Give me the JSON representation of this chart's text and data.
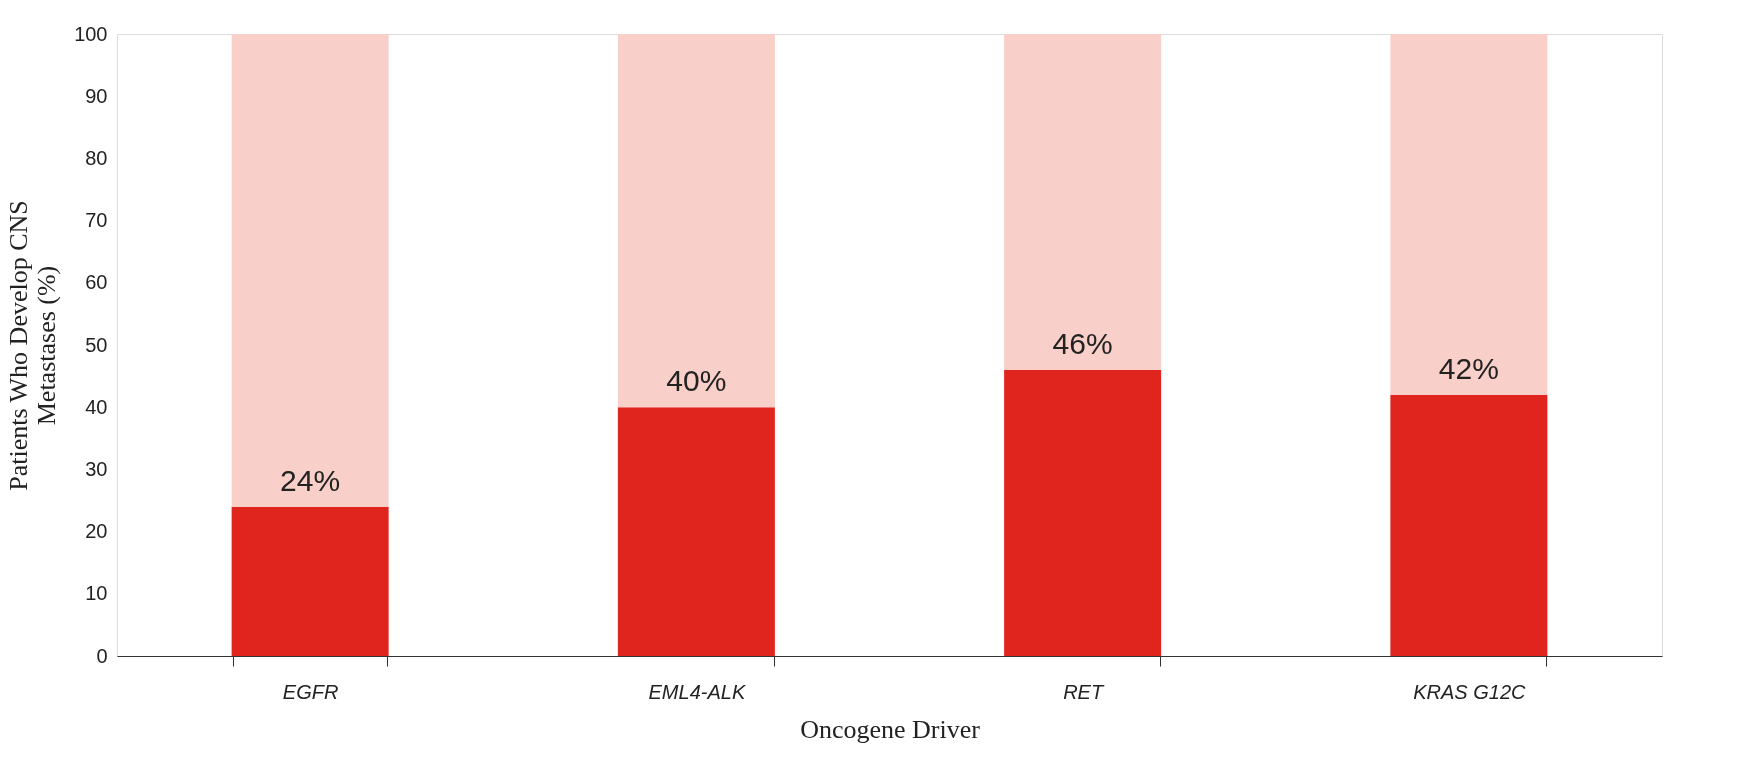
{
  "chart_data": {
    "type": "bar",
    "xlabel": "Oncogene Driver",
    "ylabel": "Patients Who Develop CNS Metastases (%)",
    "categories": [
      "EGFR",
      "EML4-ALK",
      "RET",
      "KRAS G12C"
    ],
    "stacked": true,
    "series": [
      {
        "color": "#e0241e",
        "values": [
          24,
          40,
          46,
          42
        ],
        "value_labels": [
          "24%",
          "40%",
          "46%",
          "42%"
        ]
      },
      {
        "color": "#f9cfc9",
        "values": [
          76,
          60,
          54,
          58
        ]
      }
    ],
    "ylim": [
      0,
      100
    ],
    "yticks": [
      0,
      10,
      20,
      30,
      40,
      50,
      60,
      70,
      80,
      90,
      100
    ],
    "grid": false,
    "legend": false
  }
}
